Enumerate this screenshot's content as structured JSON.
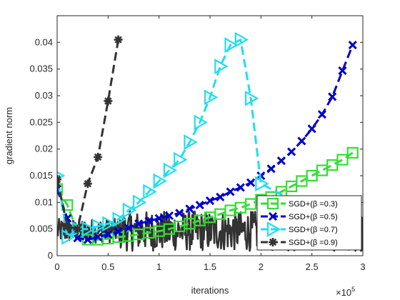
{
  "chart_data": {
    "type": "line",
    "title": "",
    "xlabel": "iterations",
    "ylabel": "gradient norm",
    "x_exponent_label": "×10",
    "x_exponent_power": "5",
    "x_multiplier": 100000,
    "xlim": [
      0,
      3
    ],
    "ylim": [
      0,
      0.045
    ],
    "x_ticks": [
      0,
      0.5,
      1,
      1.5,
      2,
      2.5,
      3
    ],
    "x_tick_labels": [
      "0",
      "0.5",
      "1",
      "1.5",
      "2",
      "2.5",
      "3"
    ],
    "y_ticks": [
      0,
      0.005,
      0.01,
      0.015,
      0.02,
      0.025,
      0.03,
      0.035,
      0.04
    ],
    "y_tick_labels": [
      "0",
      "0.005",
      "0.01",
      "0.015",
      "0.02",
      "0.025",
      "0.03",
      "0.035",
      "0.04"
    ],
    "grid": false,
    "legend_position": "bottom-right",
    "series": [
      {
        "name": "SGD+(β =0.3)",
        "color": "#33dd33",
        "marker": "square",
        "x": [
          0.0,
          0.1,
          0.2,
          0.3,
          0.4,
          0.5,
          0.6,
          0.7,
          0.8,
          0.9,
          1.0,
          1.1,
          1.2,
          1.3,
          1.4,
          1.5,
          1.6,
          1.7,
          1.8,
          1.9,
          2.0,
          2.1,
          2.2,
          2.3,
          2.4,
          2.5,
          2.6,
          2.7,
          2.8,
          2.9
        ],
        "y": [
          0.0125,
          0.0095,
          0.0045,
          0.003,
          0.003,
          0.0032,
          0.0035,
          0.0037,
          0.004,
          0.0043,
          0.0046,
          0.005,
          0.0055,
          0.006,
          0.0066,
          0.0072,
          0.0078,
          0.0085,
          0.009,
          0.0097,
          0.0105,
          0.011,
          0.012,
          0.013,
          0.014,
          0.015,
          0.016,
          0.017,
          0.018,
          0.0193
        ]
      },
      {
        "name": "SGD+(β =0.5)",
        "color": "#0000cc",
        "marker": "x",
        "x": [
          0.0,
          0.1,
          0.2,
          0.3,
          0.4,
          0.5,
          0.6,
          0.7,
          0.8,
          0.9,
          1.0,
          1.1,
          1.2,
          1.3,
          1.4,
          1.5,
          1.6,
          1.7,
          1.8,
          1.9,
          2.0,
          2.1,
          2.2,
          2.3,
          2.4,
          2.5,
          2.6,
          2.7,
          2.8,
          2.9
        ],
        "y": [
          0.0125,
          0.007,
          0.0033,
          0.003,
          0.0035,
          0.004,
          0.0045,
          0.0052,
          0.006,
          0.0065,
          0.007,
          0.0075,
          0.008,
          0.0088,
          0.0095,
          0.0103,
          0.011,
          0.012,
          0.0128,
          0.0137,
          0.015,
          0.0163,
          0.0178,
          0.0195,
          0.0215,
          0.0238,
          0.0265,
          0.0298,
          0.0347,
          0.0395
        ]
      },
      {
        "name": "SGD+(β =0.7)",
        "color": "#22ddee",
        "marker": "triangle-right",
        "x": [
          0.0,
          0.1,
          0.2,
          0.3,
          0.4,
          0.5,
          0.6,
          0.7,
          0.8,
          0.9,
          1.0,
          1.1,
          1.2,
          1.3,
          1.4,
          1.5,
          1.6,
          1.7,
          1.8,
          1.9,
          2.0,
          2.9
        ],
        "y": [
          0.015,
          0.0035,
          0.005,
          0.005,
          0.0055,
          0.006,
          0.0068,
          0.0085,
          0.01,
          0.012,
          0.014,
          0.016,
          0.018,
          0.0213,
          0.025,
          0.0297,
          0.0355,
          0.0395,
          0.0405,
          0.0295,
          0.0135,
          0.0045
        ]
      },
      {
        "name": "SGD+(β =0.9)",
        "color": "#333333",
        "marker": "asterisk",
        "x": [
          0.0,
          0.1,
          0.2,
          0.3,
          0.4,
          0.5,
          0.6
        ],
        "y": [
          0.0143,
          0.0055,
          0.005,
          0.0135,
          0.0185,
          0.029,
          0.0405
        ]
      }
    ]
  }
}
